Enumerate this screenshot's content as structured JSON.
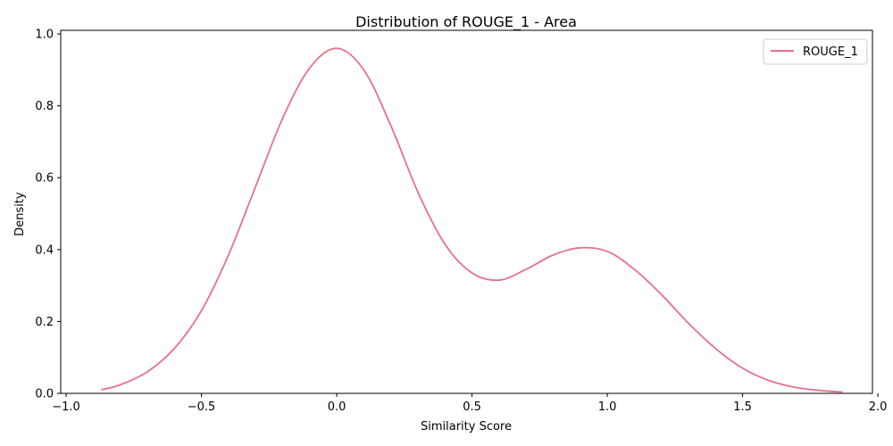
{
  "chart_data": {
    "type": "line",
    "title": "Distribution of ROUGE_1 - Area",
    "xlabel": "Similarity Score",
    "ylabel": "Density",
    "xlim": [
      -1.02,
      1.98
    ],
    "ylim": [
      0.0,
      1.01
    ],
    "xticks": [
      -1.0,
      -0.5,
      0.0,
      0.5,
      1.0,
      1.5,
      2.0
    ],
    "xtick_labels": [
      "−1.0",
      "−0.5",
      "0.0",
      "0.5",
      "1.0",
      "1.5",
      "2.0"
    ],
    "yticks": [
      0.0,
      0.2,
      0.4,
      0.6,
      0.8,
      1.0
    ],
    "ytick_labels": [
      "0.0",
      "0.2",
      "0.4",
      "0.6",
      "0.8",
      "1.0"
    ],
    "grid": false,
    "legend_position": "top-right",
    "series": [
      {
        "name": "ROUGE_1",
        "color": "#e8708a",
        "x": [
          -0.87,
          -0.8,
          -0.7,
          -0.6,
          -0.5,
          -0.4,
          -0.3,
          -0.2,
          -0.1,
          0.0,
          0.1,
          0.2,
          0.3,
          0.4,
          0.5,
          0.6,
          0.7,
          0.8,
          0.9,
          1.0,
          1.1,
          1.2,
          1.3,
          1.4,
          1.5,
          1.6,
          1.7,
          1.8,
          1.87
        ],
        "y": [
          0.01,
          0.024,
          0.06,
          0.125,
          0.23,
          0.385,
          0.575,
          0.765,
          0.905,
          0.96,
          0.9,
          0.745,
          0.56,
          0.415,
          0.335,
          0.315,
          0.345,
          0.385,
          0.405,
          0.395,
          0.345,
          0.275,
          0.195,
          0.125,
          0.07,
          0.035,
          0.016,
          0.007,
          0.004
        ]
      }
    ]
  }
}
